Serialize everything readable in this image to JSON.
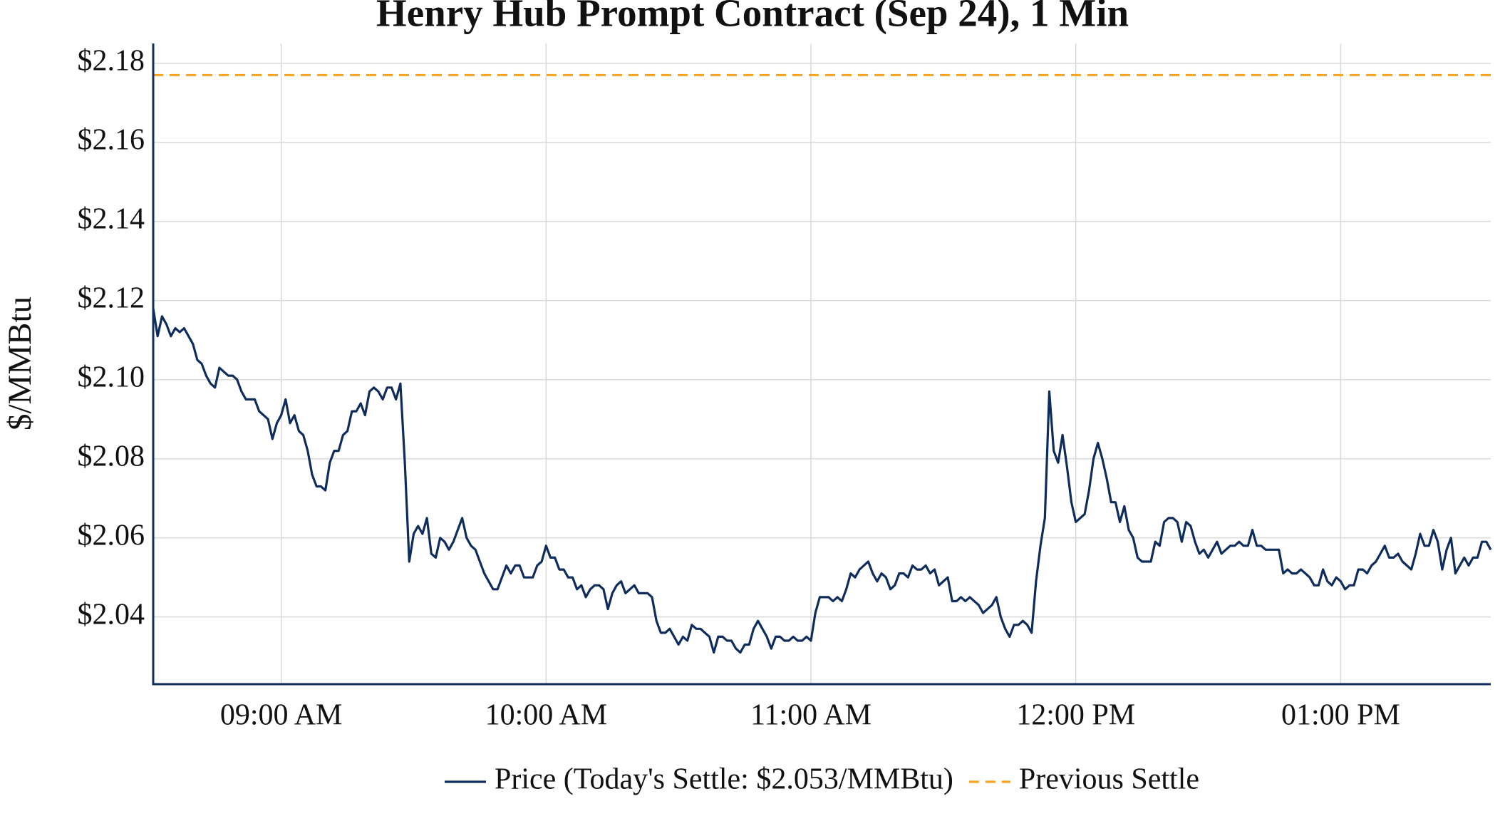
{
  "chart_data": {
    "type": "line",
    "title": "Henry Hub Prompt Contract (Sep 24), 1 Min",
    "ylabel": "$/MMBtu",
    "x": [
      "08:31",
      "08:32",
      "08:33",
      "08:34",
      "08:35",
      "08:36",
      "08:37",
      "08:38",
      "08:39",
      "08:40",
      "08:41",
      "08:42",
      "08:43",
      "08:44",
      "08:45",
      "08:46",
      "08:47",
      "08:48",
      "08:49",
      "08:50",
      "08:51",
      "08:52",
      "08:53",
      "08:54",
      "08:55",
      "08:56",
      "08:57",
      "08:58",
      "08:59",
      "09:00",
      "09:01",
      "09:02",
      "09:03",
      "09:04",
      "09:05",
      "09:06",
      "09:07",
      "09:08",
      "09:09",
      "09:10",
      "09:11",
      "09:12",
      "09:13",
      "09:14",
      "09:15",
      "09:16",
      "09:17",
      "09:18",
      "09:19",
      "09:20",
      "09:21",
      "09:22",
      "09:23",
      "09:24",
      "09:25",
      "09:26",
      "09:27",
      "09:28",
      "09:29",
      "09:30",
      "09:31",
      "09:32",
      "09:33",
      "09:34",
      "09:35",
      "09:36",
      "09:37",
      "09:38",
      "09:39",
      "09:40",
      "09:41",
      "09:42",
      "09:43",
      "09:44",
      "09:45",
      "09:46",
      "09:47",
      "09:48",
      "09:49",
      "09:50",
      "09:51",
      "09:52",
      "09:53",
      "09:54",
      "09:55",
      "09:56",
      "09:57",
      "09:58",
      "09:59",
      "10:00",
      "10:01",
      "10:02",
      "10:03",
      "10:04",
      "10:05",
      "10:06",
      "10:07",
      "10:08",
      "10:09",
      "10:10",
      "10:11",
      "10:12",
      "10:13",
      "10:14",
      "10:15",
      "10:16",
      "10:17",
      "10:18",
      "10:19",
      "10:20",
      "10:21",
      "10:22",
      "10:23",
      "10:24",
      "10:25",
      "10:26",
      "10:27",
      "10:28",
      "10:29",
      "10:30",
      "10:31",
      "10:32",
      "10:33",
      "10:34",
      "10:35",
      "10:36",
      "10:37",
      "10:38",
      "10:39",
      "10:40",
      "10:41",
      "10:42",
      "10:43",
      "10:44",
      "10:45",
      "10:46",
      "10:47",
      "10:48",
      "10:49",
      "10:50",
      "10:51",
      "10:52",
      "10:53",
      "10:54",
      "10:55",
      "10:56",
      "10:57",
      "10:58",
      "10:59",
      "11:00",
      "11:01",
      "11:02",
      "11:03",
      "11:04",
      "11:05",
      "11:06",
      "11:07",
      "11:08",
      "11:09",
      "11:10",
      "11:11",
      "11:12",
      "11:13",
      "11:14",
      "11:15",
      "11:16",
      "11:17",
      "11:18",
      "11:19",
      "11:20",
      "11:21",
      "11:22",
      "11:23",
      "11:24",
      "11:25",
      "11:26",
      "11:27",
      "11:28",
      "11:29",
      "11:30",
      "11:31",
      "11:32",
      "11:33",
      "11:34",
      "11:35",
      "11:36",
      "11:37",
      "11:38",
      "11:39",
      "11:40",
      "11:41",
      "11:42",
      "11:43",
      "11:44",
      "11:45",
      "11:46",
      "11:47",
      "11:48",
      "11:49",
      "11:50",
      "11:51",
      "11:52",
      "11:53",
      "11:54",
      "11:55",
      "11:56",
      "11:57",
      "11:58",
      "11:59",
      "12:00",
      "12:01",
      "12:02",
      "12:03",
      "12:04",
      "12:05",
      "12:06",
      "12:07",
      "12:08",
      "12:09",
      "12:10",
      "12:11",
      "12:12",
      "12:13",
      "12:14",
      "12:15",
      "12:16",
      "12:17",
      "12:18",
      "12:19",
      "12:20",
      "12:21",
      "12:22",
      "12:23",
      "12:24",
      "12:25",
      "12:26",
      "12:27",
      "12:28",
      "12:29",
      "12:30",
      "12:31",
      "12:32",
      "12:33",
      "12:34",
      "12:35",
      "12:36",
      "12:37",
      "12:38",
      "12:39",
      "12:40",
      "12:41",
      "12:42",
      "12:43",
      "12:44",
      "12:45",
      "12:46",
      "12:47",
      "12:48",
      "12:49",
      "12:50",
      "12:51",
      "12:52",
      "12:53",
      "12:54",
      "12:55",
      "12:56",
      "12:57",
      "12:58",
      "12:59",
      "13:00",
      "13:01",
      "13:02",
      "13:03",
      "13:04",
      "13:05",
      "13:06",
      "13:07",
      "13:08",
      "13:09",
      "13:10",
      "13:11",
      "13:12",
      "13:13",
      "13:14",
      "13:15",
      "13:16",
      "13:17",
      "13:18",
      "13:19",
      "13:20",
      "13:21",
      "13:22",
      "13:23",
      "13:24",
      "13:25",
      "13:26",
      "13:27",
      "13:28",
      "13:29",
      "13:30",
      "13:31",
      "13:32",
      "13:33",
      "13:34"
    ],
    "series": [
      {
        "name": "Price (Today's Settle: $2.053/MMBtu)",
        "color": "#0f2d5c",
        "values": [
          2.118,
          2.111,
          2.116,
          2.114,
          2.111,
          2.113,
          2.112,
          2.113,
          2.111,
          2.109,
          2.105,
          2.104,
          2.101,
          2.099,
          2.098,
          2.103,
          2.102,
          2.101,
          2.101,
          2.1,
          2.097,
          2.095,
          2.095,
          2.095,
          2.092,
          2.091,
          2.09,
          2.085,
          2.089,
          2.091,
          2.095,
          2.089,
          2.091,
          2.087,
          2.086,
          2.082,
          2.076,
          2.073,
          2.073,
          2.072,
          2.079,
          2.082,
          2.082,
          2.086,
          2.087,
          2.092,
          2.092,
          2.094,
          2.091,
          2.097,
          2.098,
          2.097,
          2.095,
          2.098,
          2.098,
          2.095,
          2.099,
          2.079,
          2.054,
          2.061,
          2.063,
          2.061,
          2.065,
          2.056,
          2.055,
          2.06,
          2.059,
          2.057,
          2.059,
          2.062,
          2.065,
          2.06,
          2.058,
          2.057,
          2.054,
          2.051,
          2.049,
          2.047,
          2.047,
          2.05,
          2.053,
          2.051,
          2.053,
          2.053,
          2.05,
          2.05,
          2.05,
          2.053,
          2.054,
          2.058,
          2.055,
          2.055,
          2.052,
          2.052,
          2.05,
          2.05,
          2.047,
          2.048,
          2.045,
          2.047,
          2.048,
          2.048,
          2.047,
          2.042,
          2.046,
          2.048,
          2.049,
          2.046,
          2.047,
          2.048,
          2.046,
          2.046,
          2.046,
          2.045,
          2.039,
          2.036,
          2.036,
          2.037,
          2.035,
          2.033,
          2.035,
          2.034,
          2.038,
          2.037,
          2.037,
          2.036,
          2.035,
          2.031,
          2.035,
          2.035,
          2.034,
          2.034,
          2.032,
          2.031,
          2.033,
          2.033,
          2.037,
          2.039,
          2.037,
          2.035,
          2.032,
          2.035,
          2.035,
          2.034,
          2.034,
          2.035,
          2.034,
          2.034,
          2.035,
          2.034,
          2.041,
          2.045,
          2.045,
          2.045,
          2.044,
          2.045,
          2.044,
          2.047,
          2.051,
          2.05,
          2.052,
          2.053,
          2.054,
          2.051,
          2.049,
          2.051,
          2.05,
          2.047,
          2.048,
          2.051,
          2.051,
          2.05,
          2.053,
          2.052,
          2.052,
          2.053,
          2.051,
          2.052,
          2.048,
          2.049,
          2.05,
          2.044,
          2.044,
          2.045,
          2.044,
          2.045,
          2.044,
          2.043,
          2.041,
          2.042,
          2.043,
          2.045,
          2.04,
          2.037,
          2.035,
          2.038,
          2.038,
          2.039,
          2.038,
          2.036,
          2.049,
          2.058,
          2.065,
          2.097,
          2.082,
          2.079,
          2.086,
          2.078,
          2.069,
          2.064,
          2.065,
          2.066,
          2.072,
          2.08,
          2.084,
          2.08,
          2.075,
          2.069,
          2.069,
          2.064,
          2.068,
          2.062,
          2.06,
          2.055,
          2.054,
          2.054,
          2.054,
          2.059,
          2.058,
          2.064,
          2.065,
          2.065,
          2.064,
          2.059,
          2.064,
          2.063,
          2.059,
          2.056,
          2.057,
          2.055,
          2.057,
          2.059,
          2.056,
          2.057,
          2.058,
          2.058,
          2.059,
          2.058,
          2.058,
          2.062,
          2.058,
          2.058,
          2.057,
          2.057,
          2.057,
          2.057,
          2.051,
          2.052,
          2.051,
          2.051,
          2.052,
          2.051,
          2.05,
          2.048,
          2.048,
          2.052,
          2.049,
          2.048,
          2.05,
          2.049,
          2.047,
          2.048,
          2.048,
          2.052,
          2.052,
          2.051,
          2.053,
          2.054,
          2.056,
          2.058,
          2.055,
          2.055,
          2.056,
          2.054,
          2.053,
          2.052,
          2.056,
          2.061,
          2.058,
          2.058,
          2.062,
          2.059,
          2.052,
          2.057,
          2.06,
          2.051,
          2.053,
          2.055,
          2.053,
          2.055,
          2.055,
          2.059,
          2.059,
          2.057
        ]
      }
    ],
    "reference_line": {
      "name": "Previous Settle",
      "value": 2.177,
      "color": "#f7a325",
      "style": "dashed"
    },
    "xlim": [
      "08:31",
      "13:34"
    ],
    "xticks": [
      {
        "value": "09:00",
        "label": "09:00 AM"
      },
      {
        "value": "10:00",
        "label": "10:00 AM"
      },
      {
        "value": "11:00",
        "label": "11:00 AM"
      },
      {
        "value": "12:00",
        "label": "12:00 PM"
      },
      {
        "value": "13:00",
        "label": "01:00 PM"
      }
    ],
    "ylim": [
      2.023,
      2.185
    ],
    "yticks": [
      {
        "value": 2.04,
        "label": "$2.04"
      },
      {
        "value": 2.06,
        "label": "$2.06"
      },
      {
        "value": 2.08,
        "label": "$2.08"
      },
      {
        "value": 2.1,
        "label": "$2.10"
      },
      {
        "value": 2.12,
        "label": "$2.12"
      },
      {
        "value": 2.14,
        "label": "$2.14"
      },
      {
        "value": 2.16,
        "label": "$2.16"
      },
      {
        "value": 2.18,
        "label": "$2.18"
      }
    ],
    "grid": true,
    "legend": "bottom"
  }
}
